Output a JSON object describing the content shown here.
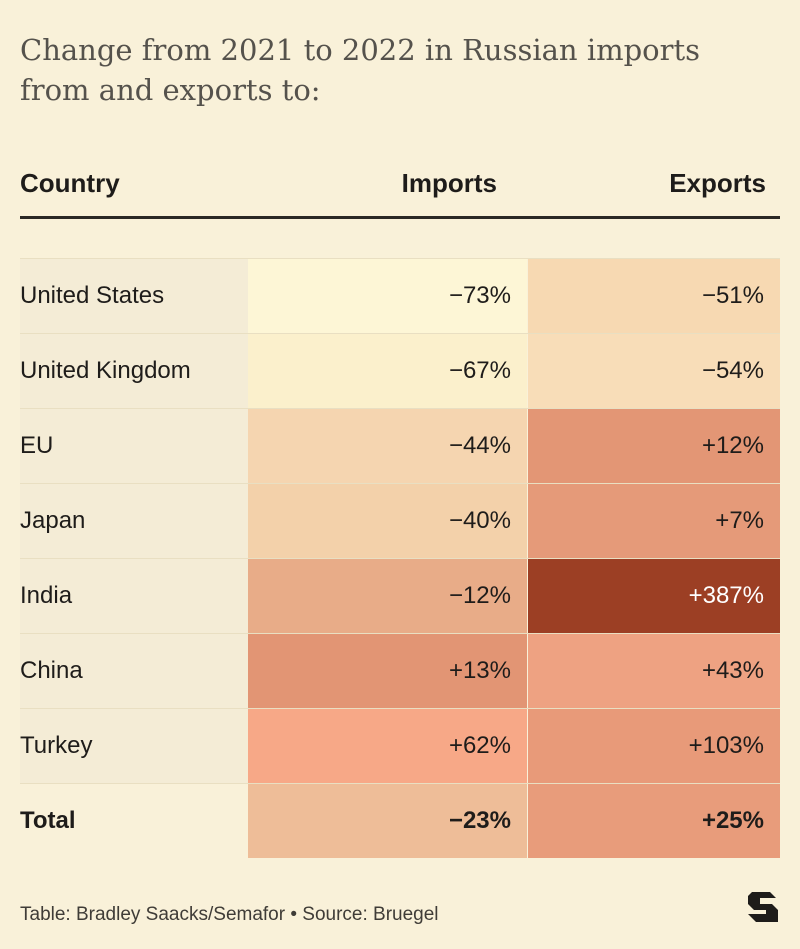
{
  "title": "Change from 2021 to 2022 in Russian imports from and exports to:",
  "columns": {
    "country": "Country",
    "imports": "Imports",
    "exports": "Exports"
  },
  "footer": "Table: Bradley Saacks/Semafor • Source: Bruegel",
  "colors": {
    "background": "#f9f1d9",
    "text": "#1e1c1a"
  },
  "chart_data": {
    "type": "table",
    "title": "Change from 2021 to 2022 in Russian imports from and exports to:",
    "columns": [
      "Country",
      "Imports",
      "Exports"
    ],
    "rows": [
      {
        "country": "United States",
        "imports": "−73%",
        "exports": "−51%",
        "imports_value": -73,
        "exports_value": -51,
        "imports_color": "#fdf6d6",
        "exports_color": "#f7d9b2"
      },
      {
        "country": "United Kingdom",
        "imports": "−67%",
        "exports": "−54%",
        "imports_value": -67,
        "exports_value": -54,
        "imports_color": "#fbf0cc",
        "exports_color": "#f8ddb8"
      },
      {
        "country": "EU",
        "imports": "−44%",
        "exports": "+12%",
        "imports_value": -44,
        "exports_value": 12,
        "imports_color": "#f5d5b0",
        "exports_color": "#e39675"
      },
      {
        "country": "Japan",
        "imports": "−40%",
        "exports": "+7%",
        "imports_value": -40,
        "exports_value": 7,
        "imports_color": "#f3d1aa",
        "exports_color": "#e59a79"
      },
      {
        "country": "India",
        "imports": "−12%",
        "exports": "+387%",
        "imports_value": -12,
        "exports_value": 387,
        "imports_color": "#e8ac88",
        "exports_color": "#9c3f24",
        "exports_text_color": "#ffffff"
      },
      {
        "country": "China",
        "imports": "+13%",
        "exports": "+43%",
        "imports_value": 13,
        "exports_value": 43,
        "imports_color": "#e29574",
        "exports_color": "#eea282"
      },
      {
        "country": "Turkey",
        "imports": "+62%",
        "exports": "+103%",
        "imports_value": 62,
        "exports_value": 103,
        "imports_color": "#f7a887",
        "exports_color": "#e89a79"
      }
    ],
    "total": {
      "country": "Total",
      "imports": "−23%",
      "exports": "+25%",
      "imports_value": -23,
      "exports_value": 25,
      "imports_color": "#eebd98",
      "exports_color": "#e89c7b"
    }
  }
}
